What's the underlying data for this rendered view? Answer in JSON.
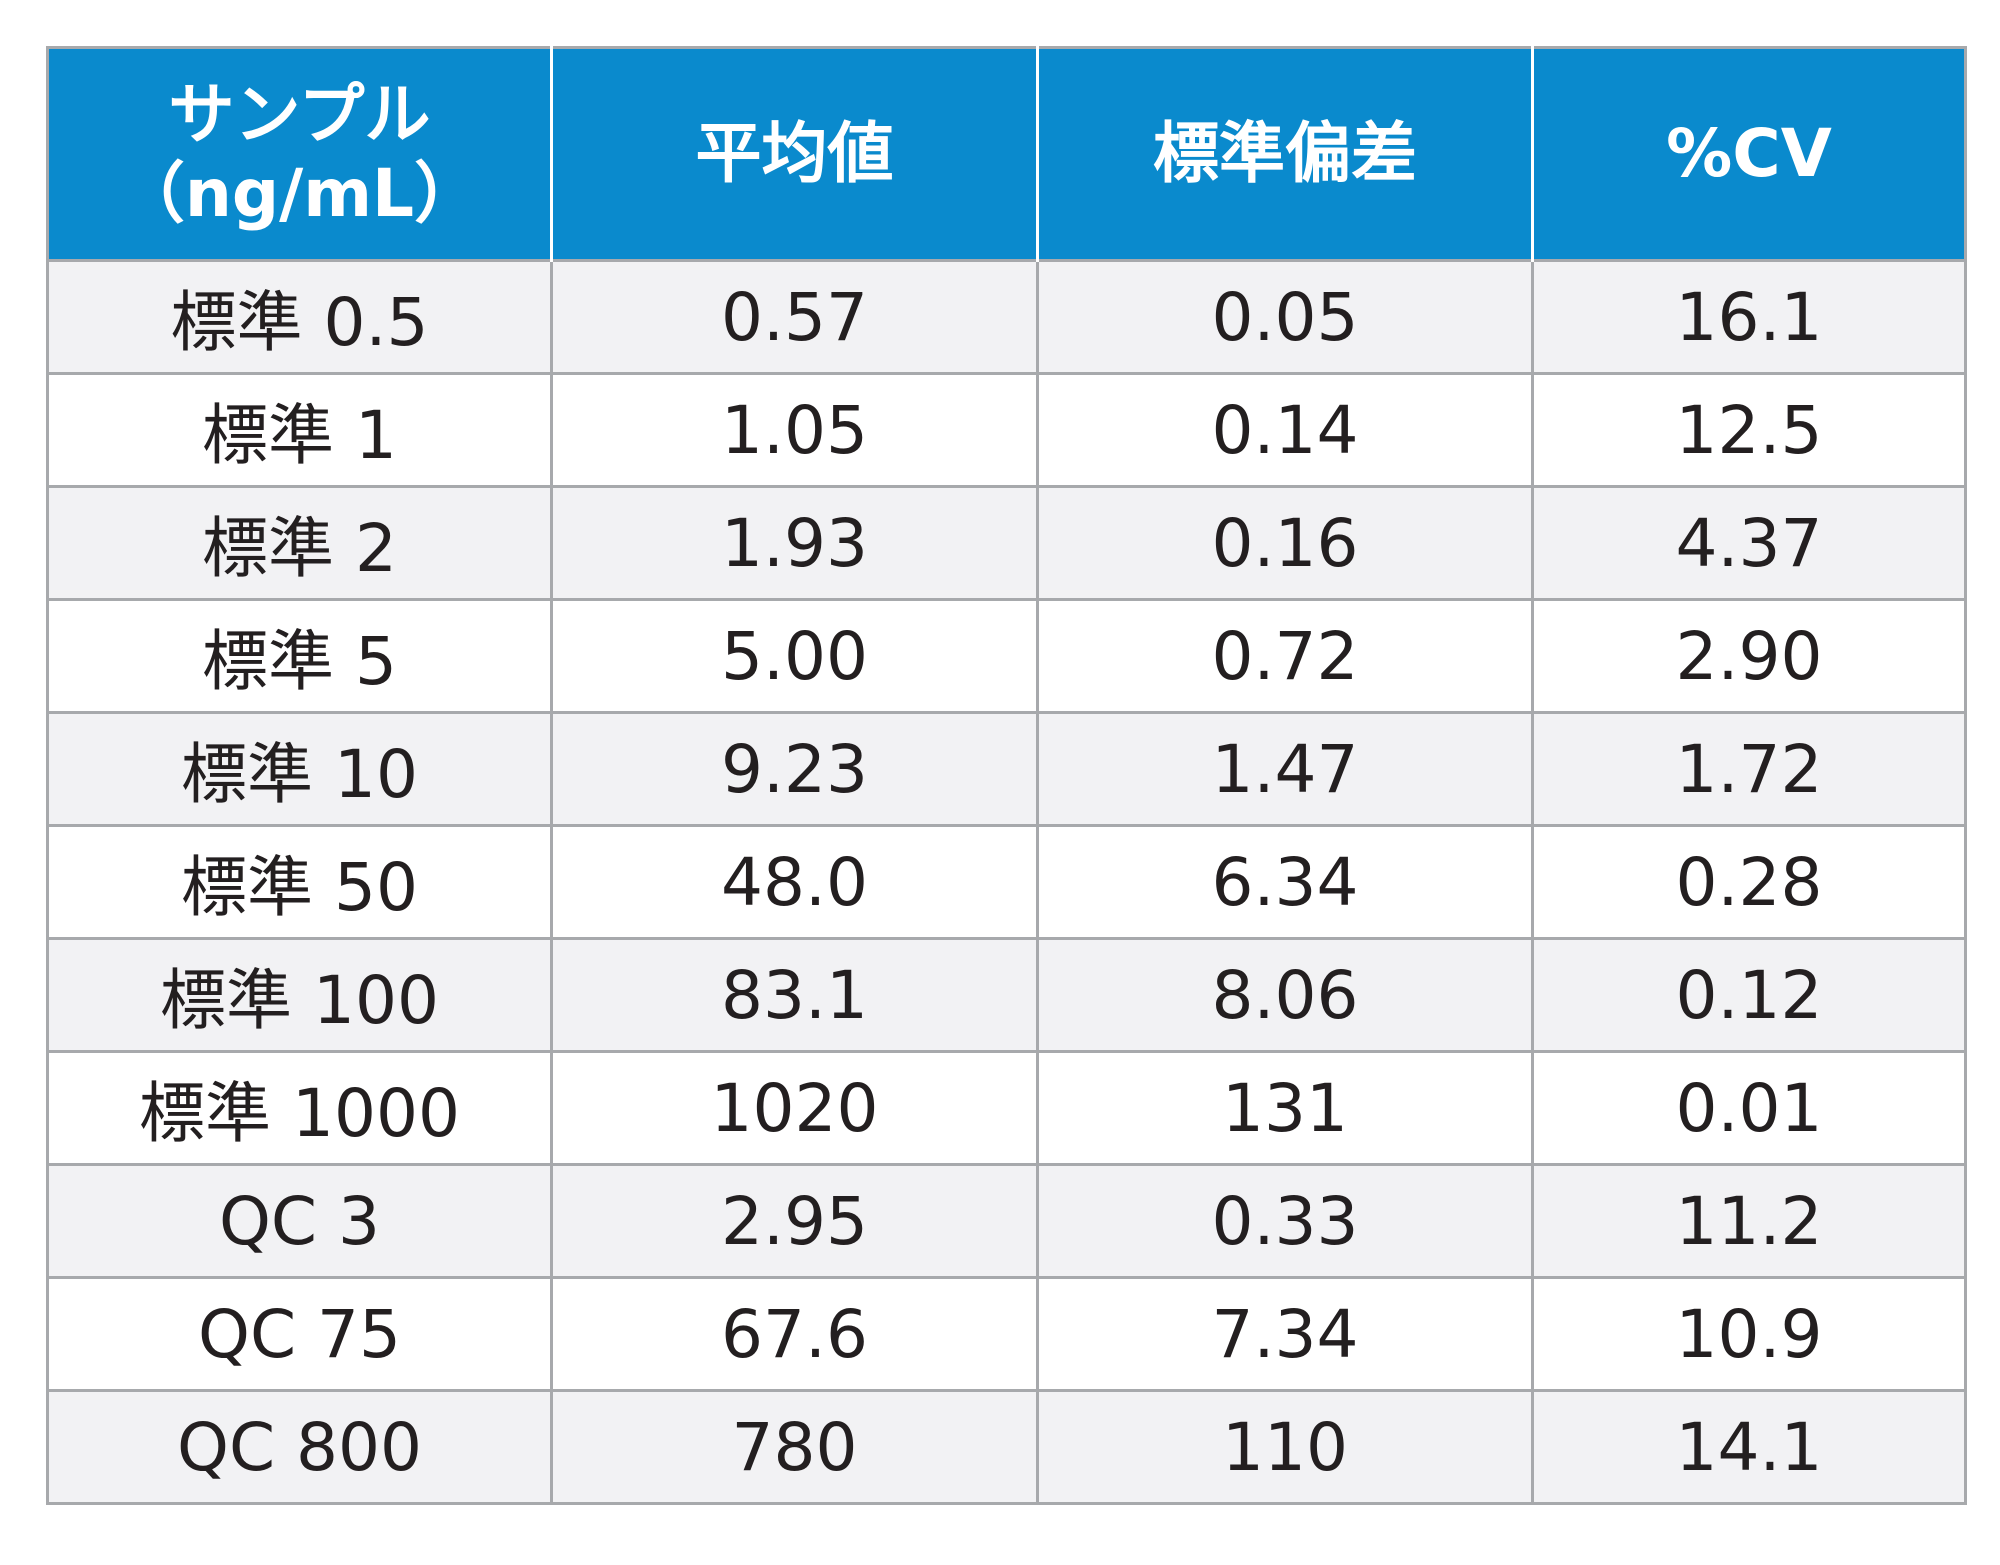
{
  "chart_data": {
    "type": "table",
    "columns": [
      [
        "サンプル",
        "（ng/mL）"
      ],
      [
        "平均値"
      ],
      [
        "標準偏差"
      ],
      [
        "%CV"
      ]
    ],
    "rows": [
      [
        "標準 0.5",
        "0.57",
        "0.05",
        "16.1"
      ],
      [
        "標準 1",
        "1.05",
        "0.14",
        "12.5"
      ],
      [
        "標準 2",
        "1.93",
        "0.16",
        "4.37"
      ],
      [
        "標準 5",
        "5.00",
        "0.72",
        "2.90"
      ],
      [
        "標準 10",
        "9.23",
        "1.47",
        "1.72"
      ],
      [
        "標準 50",
        "48.0",
        "6.34",
        "0.28"
      ],
      [
        "標準 100",
        "83.1",
        "8.06",
        "0.12"
      ],
      [
        "標準 1000",
        "1020",
        "131",
        "0.01"
      ],
      [
        "QC 3",
        "2.95",
        "0.33",
        "11.2"
      ],
      [
        "QC 75",
        "67.6",
        "7.34",
        "10.9"
      ],
      [
        "QC 800",
        "780",
        "110",
        "14.1"
      ]
    ]
  },
  "colors": {
    "header_background": "#0a8acd",
    "header_text": "#ffffff",
    "stripe_background": "#f2f2f4",
    "plain_background": "#ffffff",
    "grid_line": "#a7a9ac",
    "body_text": "#231f20"
  }
}
